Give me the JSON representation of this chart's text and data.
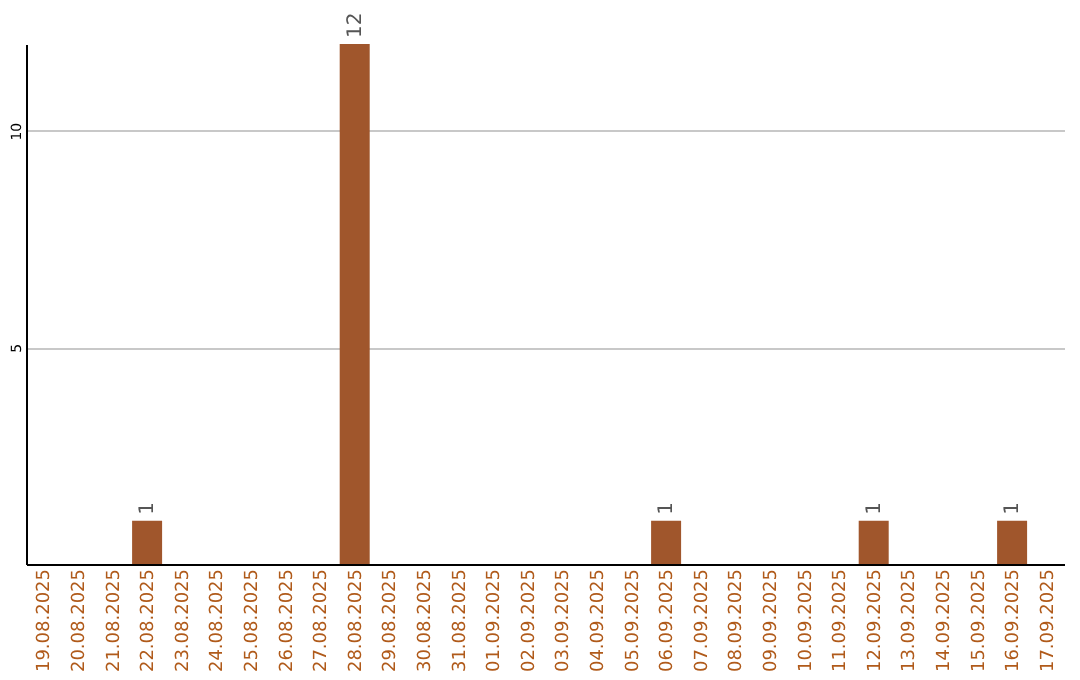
{
  "chart_data": {
    "type": "bar",
    "categories": [
      "19.08.2025",
      "20.08.2025",
      "21.08.2025",
      "22.08.2025",
      "23.08.2025",
      "24.08.2025",
      "25.08.2025",
      "26.08.2025",
      "27.08.2025",
      "28.08.2025",
      "29.08.2025",
      "30.08.2025",
      "31.08.2025",
      "01.09.2025",
      "02.09.2025",
      "03.09.2025",
      "04.09.2025",
      "05.09.2025",
      "06.09.2025",
      "07.09.2025",
      "08.09.2025",
      "09.09.2025",
      "10.09.2025",
      "11.09.2025",
      "12.09.2025",
      "13.09.2025",
      "14.09.2025",
      "15.09.2025",
      "16.09.2025",
      "17.09.2025"
    ],
    "values": [
      0,
      0,
      0,
      1,
      0,
      0,
      0,
      0,
      0,
      12,
      0,
      0,
      0,
      0,
      0,
      0,
      0,
      0,
      1,
      0,
      0,
      0,
      0,
      0,
      1,
      0,
      0,
      0,
      1,
      0
    ],
    "value_labels": [
      null,
      null,
      null,
      "1",
      null,
      null,
      null,
      null,
      null,
      "12",
      null,
      null,
      null,
      null,
      null,
      null,
      null,
      null,
      "1",
      null,
      null,
      null,
      null,
      null,
      "1",
      null,
      null,
      null,
      "1",
      null
    ],
    "color": "#a0562c",
    "ylim": [
      0,
      12
    ],
    "yticks": [
      5,
      10
    ],
    "grid": "y"
  }
}
